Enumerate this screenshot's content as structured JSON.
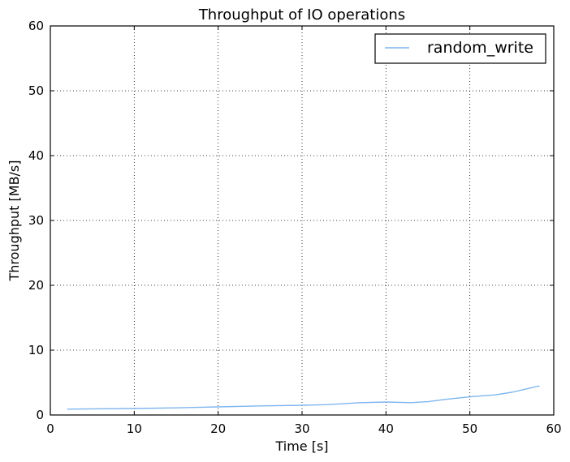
{
  "chart_data": {
    "type": "line",
    "title": "Throughput of IO operations",
    "xlabel": "Time [s]",
    "ylabel": "Throughput [MB/s]",
    "xlim": [
      0,
      60
    ],
    "ylim": [
      0,
      60
    ],
    "xticks": [
      0,
      10,
      20,
      30,
      40,
      50,
      60
    ],
    "yticks": [
      0,
      10,
      20,
      30,
      40,
      50,
      60
    ],
    "grid": true,
    "legend_position": "top-right",
    "series": [
      {
        "name": "random_write",
        "color": "#7eb6f0",
        "x": [
          2,
          5,
          10,
          15,
          20,
          25,
          30,
          33,
          37,
          40,
          43,
          45,
          47,
          50,
          53,
          55,
          57,
          58.3
        ],
        "y": [
          0.9,
          0.95,
          1.0,
          1.1,
          1.25,
          1.4,
          1.5,
          1.6,
          1.9,
          2.0,
          1.9,
          2.05,
          2.4,
          2.8,
          3.1,
          3.5,
          4.1,
          4.5
        ]
      }
    ]
  }
}
